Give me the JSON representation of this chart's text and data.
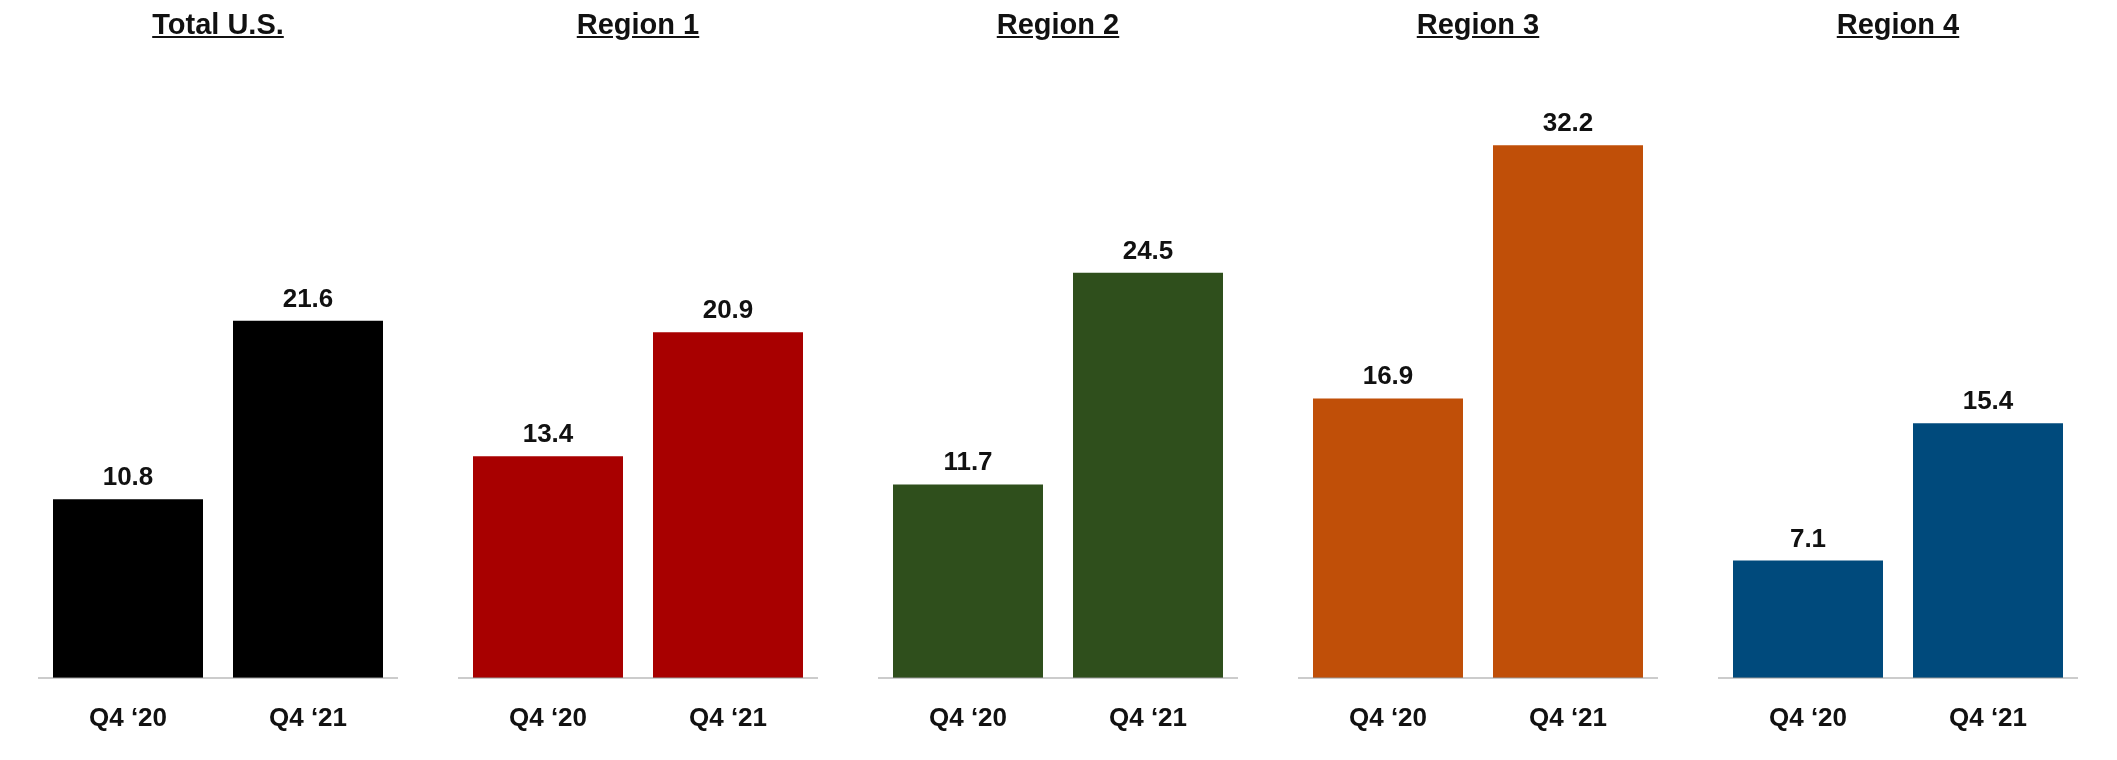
{
  "chart_data": [
    {
      "type": "bar",
      "title": "Total U.S.",
      "categories": [
        "Q4 ‘20",
        "Q4 ‘21"
      ],
      "values": [
        10.8,
        21.6
      ],
      "colors": [
        "#000000",
        "#000000"
      ],
      "data_labels": true
    },
    {
      "type": "bar",
      "title": "Region 1",
      "categories": [
        "Q4 ‘20",
        "Q4 ‘21"
      ],
      "values": [
        13.4,
        20.9
      ],
      "colors": [
        "#a80000",
        "#a80000"
      ],
      "data_labels": true
    },
    {
      "type": "bar",
      "title": "Region 2",
      "categories": [
        "Q4 ‘20",
        "Q4 ‘21"
      ],
      "values": [
        11.7,
        24.5
      ],
      "colors": [
        "#2f4f1c",
        "#2f4f1c"
      ],
      "data_labels": true
    },
    {
      "type": "bar",
      "title": "Region 3",
      "categories": [
        "Q4 ‘20",
        "Q4 ‘21"
      ],
      "values": [
        16.9,
        32.2
      ],
      "colors": [
        "#c04f08",
        "#c04f08"
      ],
      "data_labels": true
    },
    {
      "type": "bar",
      "title": "Region 4",
      "categories": [
        "Q4 ‘20",
        "Q4 ‘21"
      ],
      "values": [
        7.1,
        15.4
      ],
      "colors": [
        "#004a7c",
        "#004a7c"
      ],
      "data_labels": true
    }
  ]
}
